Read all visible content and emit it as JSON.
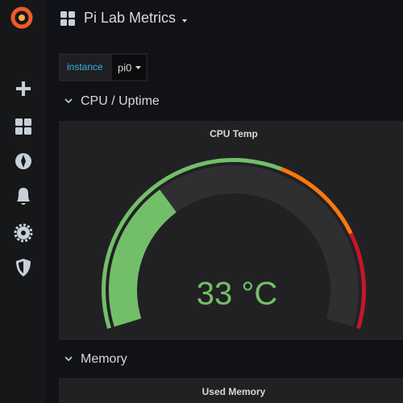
{
  "header": {
    "title": "Pi Lab Metrics"
  },
  "variables": [
    {
      "label": "instance",
      "value": "pi0"
    }
  ],
  "rows": [
    {
      "title": "CPU / Uptime",
      "panels": [
        {
          "title": "CPU Temp",
          "value": 33,
          "value_label": "33 °C",
          "color": "#73bf69",
          "gauge": {
            "min": 0,
            "max": 100,
            "base_color": "#73bf69",
            "thresholds": [
              {
                "value": 60,
                "color": "#ff780a"
              },
              {
                "value": 80,
                "color": "#c4162a"
              }
            ]
          }
        }
      ]
    },
    {
      "title": "Memory",
      "panels": [
        {
          "title": "Used Memory"
        }
      ]
    }
  ]
}
